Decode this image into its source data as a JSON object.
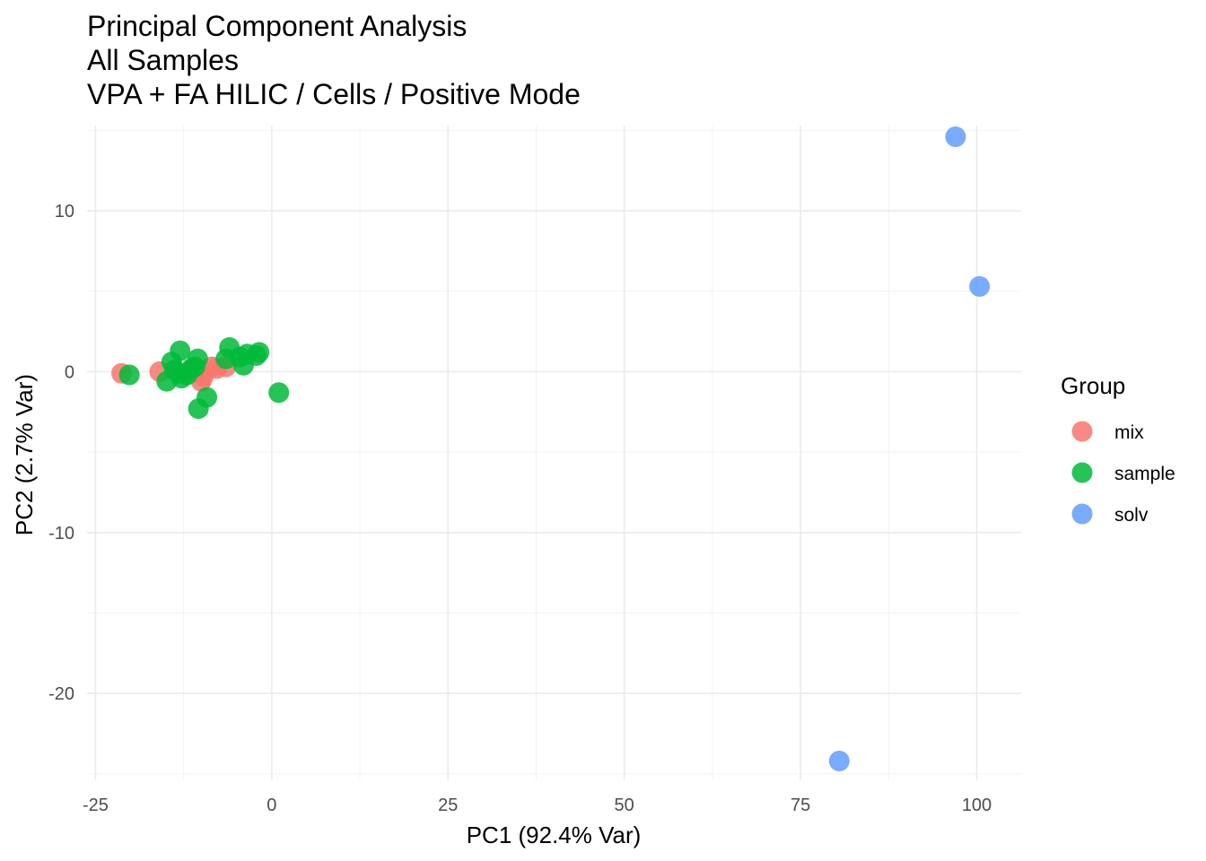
{
  "chart_data": {
    "type": "scatter",
    "title": "Principal Component Analysis",
    "subtitle": [
      "All Samples",
      "VPA + FA HILIC / Cells / Positive Mode"
    ],
    "xlabel": "PC1 (92.4% Var)",
    "ylabel": "PC2 (2.7% Var)",
    "xlim": [
      -26.2,
      106.3
    ],
    "ylim": [
      -25.4,
      15.3
    ],
    "x_ticks": [
      -25,
      0,
      25,
      50,
      75,
      100
    ],
    "x_tick_labels": [
      "-25",
      "0",
      "25",
      "50",
      "75",
      "100"
    ],
    "y_ticks": [
      10,
      0,
      -10,
      -20
    ],
    "y_tick_labels": [
      "10",
      "0",
      "-10",
      "-20"
    ],
    "grid": true,
    "legend": {
      "title": "Group",
      "position": "right"
    },
    "series": [
      {
        "name": "mix",
        "color": "#F8766D",
        "points": [
          [
            -21.3,
            -0.1
          ],
          [
            -15.9,
            0.0
          ],
          [
            -11.2,
            0.2
          ],
          [
            -10.0,
            -0.6
          ],
          [
            -9.7,
            -0.3
          ],
          [
            -8.5,
            0.3
          ],
          [
            -7.8,
            0.2
          ],
          [
            -6.5,
            0.3
          ],
          [
            -10.5,
            0.0
          ]
        ]
      },
      {
        "name": "sample",
        "color": "#00BA38",
        "points": [
          [
            -20.2,
            -0.2
          ],
          [
            -14.9,
            -0.6
          ],
          [
            -14.2,
            0.6
          ],
          [
            -13.8,
            0.1
          ],
          [
            -13.2,
            -0.1
          ],
          [
            -13.0,
            1.3
          ],
          [
            -12.8,
            -0.4
          ],
          [
            -12.0,
            -0.2
          ],
          [
            -11.4,
            0.2
          ],
          [
            -10.9,
            0.3
          ],
          [
            -10.5,
            0.8
          ],
          [
            -10.4,
            -2.3
          ],
          [
            -9.2,
            -1.6
          ],
          [
            -6.5,
            0.8
          ],
          [
            -6.0,
            1.5
          ],
          [
            -4.5,
            0.9
          ],
          [
            -4.0,
            0.4
          ],
          [
            -3.5,
            1.1
          ],
          [
            -2.2,
            1.0
          ],
          [
            -1.8,
            1.2
          ],
          [
            1.0,
            -1.3
          ]
        ]
      },
      {
        "name": "solv",
        "color": "#619CFF",
        "points": [
          [
            97.0,
            14.6
          ],
          [
            100.4,
            5.3
          ],
          [
            80.5,
            -24.2
          ]
        ]
      }
    ]
  }
}
